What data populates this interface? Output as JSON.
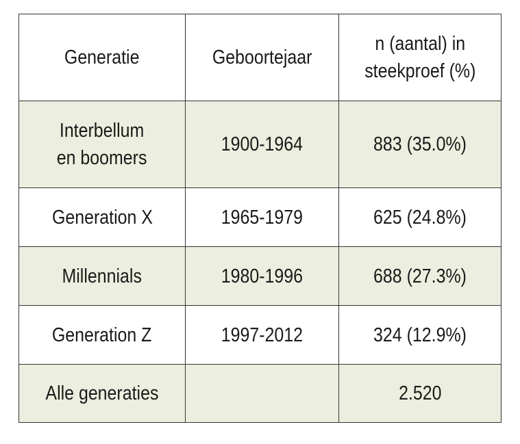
{
  "table": {
    "header": [
      "Generatie",
      "Geboortejaar",
      "n (aantal) in\nsteekproef (%)"
    ],
    "rows": [
      [
        "Interbellum\nen boomers",
        "1900-1964",
        "883 (35.0%)"
      ],
      [
        "Generation X",
        "1965-1979",
        "625 (24.8%)"
      ],
      [
        "Millennials",
        "1980-1996",
        "688 (27.3%)"
      ],
      [
        "Generation Z",
        "1997-2012",
        "324 (12.9%)"
      ],
      [
        "Alle generaties",
        null,
        "2.520"
      ]
    ]
  }
}
